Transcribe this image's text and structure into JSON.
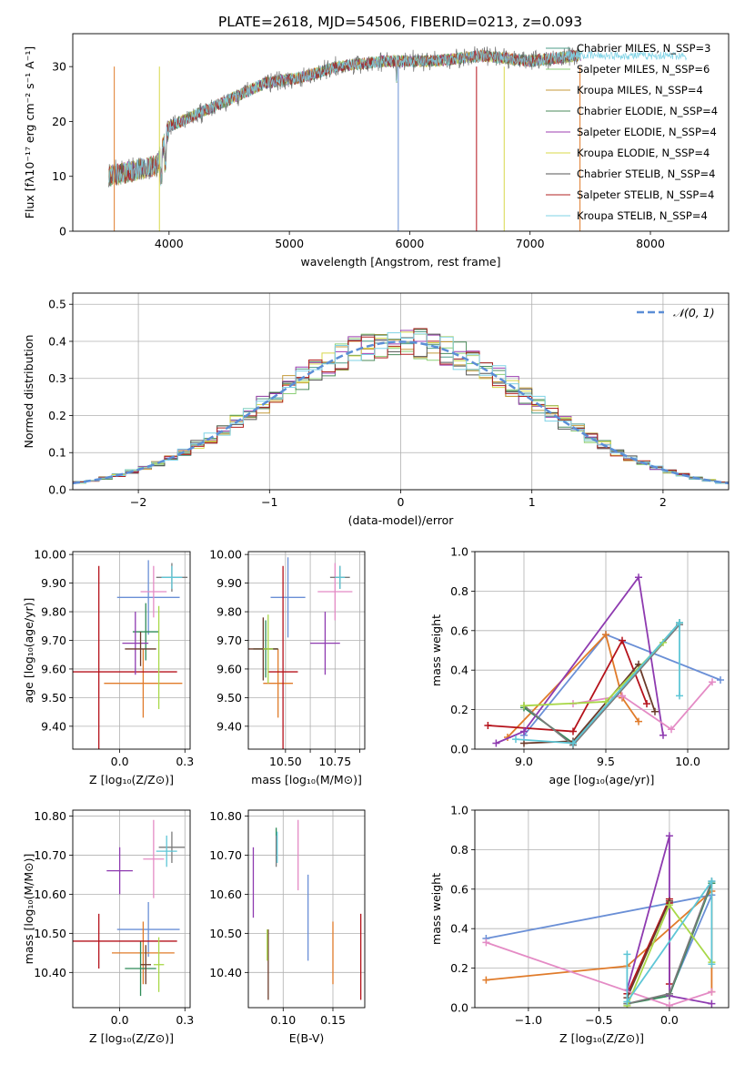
{
  "figure": {
    "title": "PLATE=2618, MJD=54506, FIBERID=0213, z=0.093"
  },
  "colors": {
    "models": [
      "#4e9d8a",
      "#8ccf77",
      "#c49a3a",
      "#4b8b5b",
      "#9c3fb0",
      "#d8d84a",
      "#555555",
      "#b22222",
      "#7fd3e6"
    ],
    "panel_series": [
      "#6a8fd6",
      "#e07b2a",
      "#2e8b57",
      "#b5121b",
      "#8e3ab0",
      "#6b3b2b",
      "#e48bc5",
      "#7a7a7a",
      "#a8d848",
      "#5ec6d6"
    ],
    "grid": "#b0b0b0",
    "normal_curve": "#5b8ed6"
  },
  "chart_data": [
    {
      "id": "spectrum",
      "type": "line",
      "xlabel": "wavelength [Angstrom, rest frame]",
      "ylabel": "Flux [fλ10⁻¹⁷ erg cm⁻² s⁻¹ A⁻¹]",
      "xlim": [
        3200,
        8650
      ],
      "ylim": [
        0,
        36
      ],
      "xticks": [
        4000,
        5000,
        6000,
        7000,
        8000
      ],
      "yticks": [
        0,
        10,
        20,
        30
      ],
      "grid": false,
      "legend_position": "upper-right",
      "legend": [
        "Chabrier MILES, N_SSP=3",
        "Salpeter MILES, N_SSP=6",
        "Kroupa MILES, N_SSP=4",
        "Chabrier ELODIE, N_SSP=4",
        "Salpeter ELODIE, N_SSP=4",
        "Kroupa ELODIE, N_SSP=4",
        "Chabrier STELIB, N_SSP=4",
        "Salpeter STELIB, N_SSP=4",
        "Kroupa STELIB, N_SSP=4"
      ],
      "continuum": {
        "x": [
          3500,
          3700,
          3900,
          4000,
          4200,
          4500,
          4800,
          5100,
          5400,
          5800,
          6200,
          6600,
          7000,
          7400
        ],
        "y": [
          10,
          11,
          12,
          19,
          21,
          24,
          27,
          28,
          30,
          31,
          31,
          32,
          31,
          32
        ]
      }
    },
    {
      "id": "residuals",
      "type": "step",
      "xlabel": "(data-model)/error",
      "ylabel": "Normed distribution",
      "xlim": [
        -2.5,
        2.5
      ],
      "ylim": [
        0,
        0.53
      ],
      "xticks": [
        -2,
        -1,
        0,
        1,
        2
      ],
      "yticks": [
        0.0,
        0.1,
        0.2,
        0.3,
        0.4,
        0.5
      ],
      "grid": true,
      "legend_position": "upper-right",
      "legend": [
        "𝒩(0, 1)"
      ]
    },
    {
      "id": "age-vs-z",
      "type": "errorbar",
      "xlabel": "Z [log₁₀(Z/Z⊙)]",
      "ylabel": "age  [log₁₀(age/yr)]",
      "xlim": [
        -0.18,
        0.27
      ],
      "ylim": [
        9.32,
        10.01
      ],
      "xticks": [
        0.0,
        0.25
      ],
      "yticks": [
        9.4,
        9.5,
        9.6,
        9.7,
        9.8,
        9.9,
        10.0
      ],
      "grid": true,
      "points": [
        {
          "x": 0.11,
          "y": 9.85,
          "xerr": 0.12,
          "yerr": 0.13
        },
        {
          "x": 0.09,
          "y": 9.55,
          "xerr": 0.15,
          "yerr": 0.12
        },
        {
          "x": 0.1,
          "y": 9.73,
          "xerr": 0.05,
          "yerr": 0.1
        },
        {
          "x": -0.08,
          "y": 9.59,
          "xerr": 0.3,
          "yerr": 0.37
        },
        {
          "x": 0.06,
          "y": 9.69,
          "xerr": 0.05,
          "yerr": 0.11
        },
        {
          "x": 0.08,
          "y": 9.67,
          "xerr": 0.06,
          "yerr": 0.06
        },
        {
          "x": 0.13,
          "y": 9.87,
          "xerr": 0.05,
          "yerr": 0.09
        },
        {
          "x": 0.2,
          "y": 9.92,
          "xerr": 0.06,
          "yerr": 0.05
        },
        {
          "x": 0.15,
          "y": 9.64,
          "xerr": 0.0,
          "yerr": 0.18
        },
        {
          "x": 0.2,
          "y": 9.92,
          "xerr": 0.04,
          "yerr": 0.04
        }
      ]
    },
    {
      "id": "age-vs-mass",
      "type": "errorbar",
      "xlabel": "mass [log₁₀(M/M⊙)]",
      "ylabel": "",
      "xlim": [
        10.35,
        10.82
      ],
      "ylim": [
        9.32,
        10.01
      ],
      "xticks": [
        10.5,
        10.6,
        10.7,
        10.8
      ],
      "xticklabels": [
        "10.50",
        "",
        "10.75",
        ""
      ],
      "yticks": [
        9.4,
        9.5,
        9.6,
        9.7,
        9.8,
        9.9,
        10.0
      ],
      "grid": true,
      "points": [
        {
          "x": 10.51,
          "y": 9.85,
          "xerr": 0.07,
          "yerr": 0.14
        },
        {
          "x": 10.47,
          "y": 9.55,
          "xerr": 0.06,
          "yerr": 0.12
        },
        {
          "x": 10.42,
          "y": 9.67,
          "xerr": 0.05,
          "yerr": 0.1
        },
        {
          "x": 10.49,
          "y": 9.59,
          "xerr": 0.06,
          "yerr": 0.37
        },
        {
          "x": 10.66,
          "y": 9.69,
          "xerr": 0.06,
          "yerr": 0.11
        },
        {
          "x": 10.41,
          "y": 9.67,
          "xerr": 0.06,
          "yerr": 0.11
        },
        {
          "x": 10.7,
          "y": 9.87,
          "xerr": 0.07,
          "yerr": 0.1
        },
        {
          "x": 10.72,
          "y": 9.92,
          "xerr": 0.04,
          "yerr": 0.04
        },
        {
          "x": 10.43,
          "y": 9.67,
          "xerr": 0.02,
          "yerr": 0.12
        },
        {
          "x": 10.72,
          "y": 9.92,
          "xerr": 0.02,
          "yerr": 0.04
        }
      ]
    },
    {
      "id": "weight-vs-age",
      "type": "line",
      "xlabel": "age  [log₁₀(age/yr)]",
      "ylabel": "mass weight",
      "xlim": [
        8.7,
        10.25
      ],
      "ylim": [
        0,
        1
      ],
      "xticks": [
        9.0,
        9.5,
        10.0
      ],
      "yticks": [
        0.0,
        0.2,
        0.4,
        0.6,
        0.8,
        1.0
      ],
      "grid": true,
      "series": [
        {
          "x": [
            9.0,
            9.5,
            10.2
          ],
          "y": [
            0.07,
            0.58,
            0.35
          ]
        },
        {
          "x": [
            8.9,
            9.5,
            9.6,
            9.7
          ],
          "y": [
            0.06,
            0.58,
            0.26,
            0.14
          ]
        },
        {
          "x": [
            9.0,
            9.3,
            9.95
          ],
          "y": [
            0.21,
            0.03,
            0.64
          ]
        },
        {
          "x": [
            8.78,
            9.3,
            9.6,
            9.75
          ],
          "y": [
            0.12,
            0.09,
            0.55,
            0.23
          ]
        },
        {
          "x": [
            8.83,
            9.0,
            9.7,
            9.85
          ],
          "y": [
            0.03,
            0.09,
            0.87,
            0.07
          ]
        },
        {
          "x": [
            9.0,
            9.3,
            9.7,
            9.8
          ],
          "y": [
            0.03,
            0.04,
            0.43,
            0.19
          ]
        },
        {
          "x": [
            9.3,
            9.6,
            9.9,
            10.15
          ],
          "y": [
            0.23,
            0.27,
            0.1,
            0.34
          ]
        },
        {
          "x": [
            9.0,
            9.3,
            9.95
          ],
          "y": [
            0.22,
            0.02,
            0.63
          ]
        },
        {
          "x": [
            9.0,
            9.5,
            9.85
          ],
          "y": [
            0.22,
            0.24,
            0.54
          ]
        },
        {
          "x": [
            8.95,
            9.3,
            9.95,
            9.95
          ],
          "y": [
            0.05,
            0.03,
            0.64,
            0.27
          ]
        }
      ]
    },
    {
      "id": "mass-vs-z",
      "type": "errorbar",
      "xlabel": "Z [log₁₀(Z/Z⊙)]",
      "ylabel": "mass [log₁₀(M/M⊙)]",
      "xlim": [
        -0.18,
        0.27
      ],
      "ylim": [
        10.31,
        10.815
      ],
      "xticks": [
        0.0,
        0.25
      ],
      "yticks": [
        10.4,
        10.5,
        10.6,
        10.7,
        10.8
      ],
      "grid": true,
      "points": [
        {
          "x": 0.11,
          "y": 10.51,
          "xerr": 0.12,
          "yerr": 0.07
        },
        {
          "x": 0.09,
          "y": 10.45,
          "xerr": 0.12,
          "yerr": 0.08
        },
        {
          "x": 0.08,
          "y": 10.41,
          "xerr": 0.06,
          "yerr": 0.07
        },
        {
          "x": -0.08,
          "y": 10.48,
          "xerr": 0.3,
          "yerr": 0.07
        },
        {
          "x": 0.0,
          "y": 10.66,
          "xerr": 0.05,
          "yerr": 0.06
        },
        {
          "x": 0.1,
          "y": 10.42,
          "xerr": 0.02,
          "yerr": 0.05
        },
        {
          "x": 0.13,
          "y": 10.69,
          "xerr": 0.04,
          "yerr": 0.1
        },
        {
          "x": 0.2,
          "y": 10.72,
          "xerr": 0.05,
          "yerr": 0.04
        },
        {
          "x": 0.15,
          "y": 10.42,
          "xerr": 0.02,
          "yerr": 0.07
        },
        {
          "x": 0.18,
          "y": 10.71,
          "xerr": 0.04,
          "yerr": 0.04
        }
      ]
    },
    {
      "id": "mass-vs-ebv",
      "type": "errorbar",
      "xlabel": "E(B-V)",
      "ylabel": "",
      "xlim": [
        0.065,
        0.182
      ],
      "ylim": [
        10.31,
        10.815
      ],
      "xticks": [
        0.1,
        0.15
      ],
      "yticks": [
        10.4,
        10.5,
        10.6,
        10.7,
        10.8
      ],
      "grid": true,
      "points": [
        {
          "x": 0.125,
          "y": 10.54,
          "xerr": 0.0,
          "yerr": 0.11
        },
        {
          "x": 0.15,
          "y": 10.45,
          "xerr": 0.0,
          "yerr": 0.08
        },
        {
          "x": 0.093,
          "y": 10.73,
          "xerr": 0.0,
          "yerr": 0.04
        },
        {
          "x": 0.178,
          "y": 10.44,
          "xerr": 0.0,
          "yerr": 0.11
        },
        {
          "x": 0.07,
          "y": 10.63,
          "xerr": 0.0,
          "yerr": 0.09
        },
        {
          "x": 0.085,
          "y": 10.42,
          "xerr": 0.0,
          "yerr": 0.09
        },
        {
          "x": 0.115,
          "y": 10.7,
          "xerr": 0.0,
          "yerr": 0.09
        },
        {
          "x": 0.093,
          "y": 10.71,
          "xerr": 0.0,
          "yerr": 0.04
        },
        {
          "x": 0.084,
          "y": 10.47,
          "xerr": 0.0,
          "yerr": 0.04
        },
        {
          "x": 0.094,
          "y": 10.72,
          "xerr": 0.0,
          "yerr": 0.04
        }
      ]
    },
    {
      "id": "weight-vs-z",
      "type": "line",
      "xlabel": "Z [log₁₀(Z/Z⊙)]",
      "ylabel": "mass weight",
      "xlim": [
        -1.38,
        0.42
      ],
      "ylim": [
        0,
        1
      ],
      "xticks": [
        -1.0,
        -0.5,
        0.0
      ],
      "yticks": [
        0.0,
        0.2,
        0.4,
        0.6,
        0.8,
        1.0
      ],
      "grid": true,
      "series": [
        {
          "x": [
            -1.3,
            0.3,
            0.0
          ],
          "y": [
            0.35,
            0.57,
            0.07
          ]
        },
        {
          "x": [
            -1.3,
            -0.3,
            0.3,
            0.3
          ],
          "y": [
            0.14,
            0.21,
            0.59,
            0.08
          ]
        },
        {
          "x": [
            -0.3,
            0.0,
            0.3
          ],
          "y": [
            0.02,
            0.06,
            0.63
          ]
        },
        {
          "x": [
            -0.3,
            0.0,
            0.0,
            0.0
          ],
          "y": [
            0.07,
            0.55,
            0.12,
            0.53
          ]
        },
        {
          "x": [
            -0.3,
            0.0,
            0.0,
            0.3
          ],
          "y": [
            0.09,
            0.87,
            0.06,
            0.02
          ]
        },
        {
          "x": [
            -0.3,
            0.0
          ],
          "y": [
            0.05,
            0.54
          ]
        },
        {
          "x": [
            -1.3,
            0.0,
            0.3
          ],
          "y": [
            0.33,
            0.01,
            0.08
          ]
        },
        {
          "x": [
            -0.3,
            0.0,
            0.3
          ],
          "y": [
            0.02,
            0.07,
            0.64
          ]
        },
        {
          "x": [
            -0.3,
            0.0,
            0.3
          ],
          "y": [
            0.01,
            0.52,
            0.23
          ]
        },
        {
          "x": [
            -0.3,
            -0.3,
            0.3,
            0.3
          ],
          "y": [
            0.27,
            0.03,
            0.64,
            0.22
          ]
        }
      ]
    }
  ]
}
